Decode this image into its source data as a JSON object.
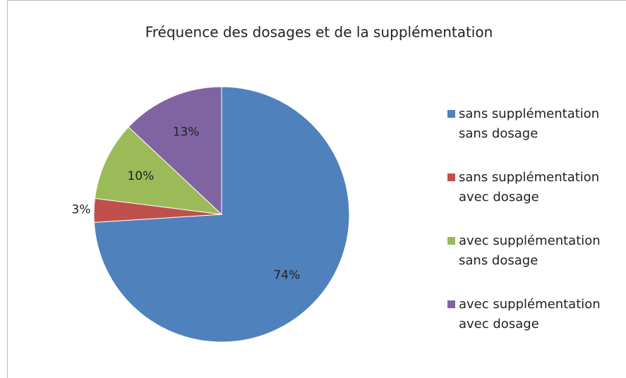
{
  "chart_data": {
    "type": "pie",
    "title": "Fréquence des dosages et de la supplémentation",
    "categories": [
      "sans supplémentation sans dosage",
      "sans supplémentation avec dosage",
      "avec supplémentation sans dosage",
      "avec supplémentation avec dosage"
    ],
    "values": [
      74,
      3,
      10,
      13
    ],
    "value_labels": [
      "74%",
      "3%",
      "10%",
      "13%"
    ],
    "colors": [
      "#4f81bd",
      "#c0504d",
      "#9bbb59",
      "#8064a2"
    ],
    "legend": "right"
  }
}
